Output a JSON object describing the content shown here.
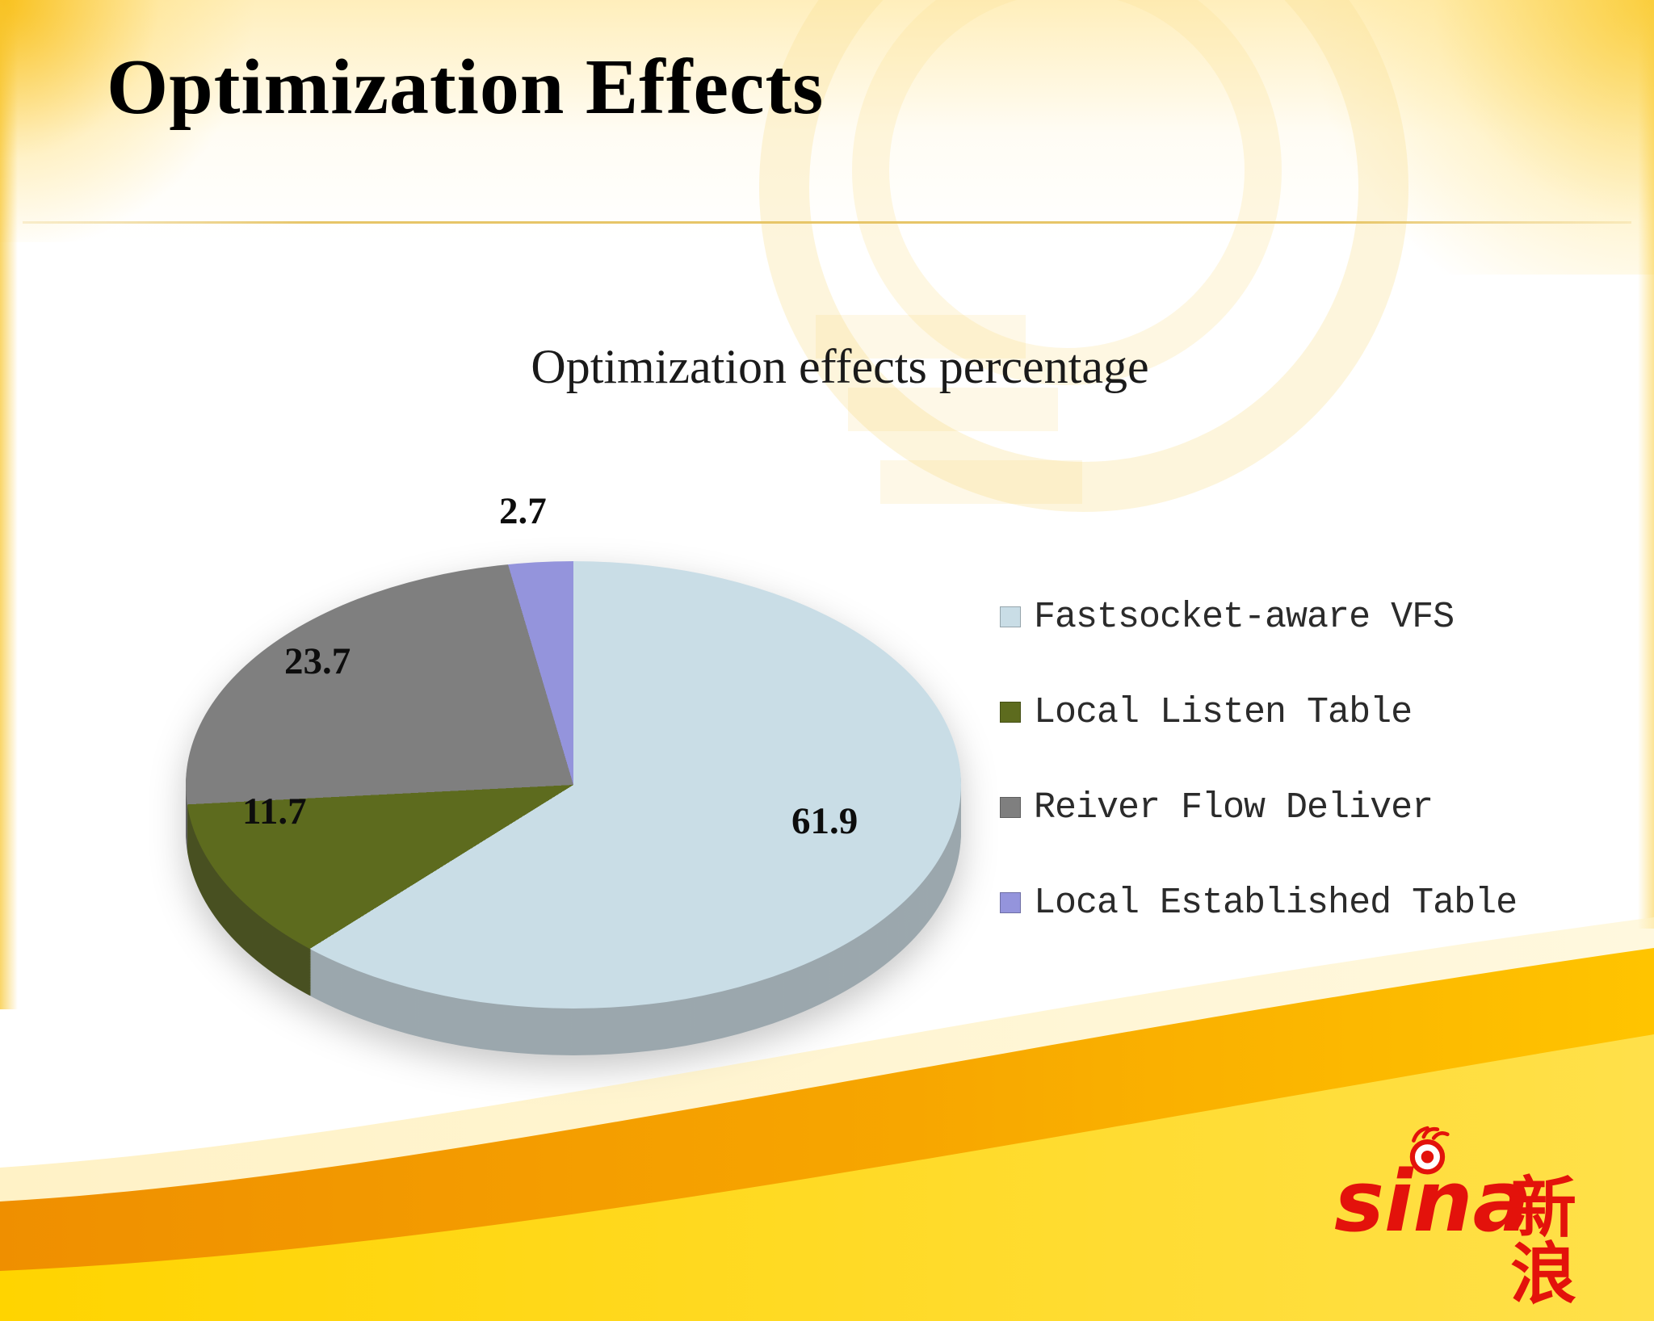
{
  "slide": {
    "title": "Optimization Effects"
  },
  "chart_data": {
    "type": "pie",
    "title": "Optimization effects percentage",
    "labels": [
      "Fastsocket-aware VFS",
      "Local Listen Table",
      "Reiver Flow Deliver",
      "Local Established Table"
    ],
    "values": [
      61.9,
      11.7,
      23.7,
      2.7
    ],
    "colors": [
      "#c9dde6",
      "#5d6b1e",
      "#7f7f7f",
      "#9494dc"
    ],
    "start_angle_deg": 0,
    "direction": "clockwise",
    "legend_position": "right",
    "depth_effect": "3d",
    "value_labels": [
      "61.9",
      "11.7",
      "23.7",
      "2.7"
    ]
  },
  "brand": {
    "logo_text": "sina",
    "logo_cjk": "新浪",
    "logo_color": "#e3120b"
  },
  "theme": {
    "accent_orange": "#f29500",
    "accent_yellow": "#ffd800",
    "divider_gold": "#e7c568"
  }
}
